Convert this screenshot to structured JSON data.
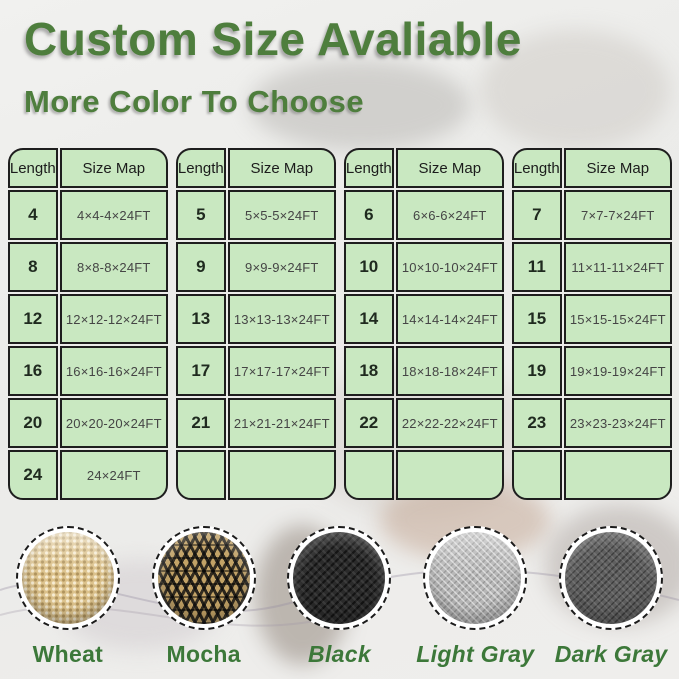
{
  "header": {
    "title": "Custom Size Avaliable",
    "subtitle": "More Color To Choose"
  },
  "tables": [
    {
      "columns": [
        "Length",
        "Size Map"
      ],
      "rows": [
        [
          "4",
          "4×4-4×24FT"
        ],
        [
          "8",
          "8×8-8×24FT"
        ],
        [
          "12",
          "12×12-12×24FT"
        ],
        [
          "16",
          "16×16-16×24FT"
        ],
        [
          "20",
          "20×20-20×24FT"
        ],
        [
          "24",
          "24×24FT"
        ]
      ]
    },
    {
      "columns": [
        "Length",
        "Size Map"
      ],
      "rows": [
        [
          "5",
          "5×5-5×24FT"
        ],
        [
          "9",
          "9×9-9×24FT"
        ],
        [
          "13",
          "13×13-13×24FT"
        ],
        [
          "17",
          "17×17-17×24FT"
        ],
        [
          "21",
          "21×21-21×24FT"
        ],
        [
          "",
          ""
        ]
      ]
    },
    {
      "columns": [
        "Length",
        "Size Map"
      ],
      "rows": [
        [
          "6",
          "6×6-6×24FT"
        ],
        [
          "10",
          "10×10-10×24FT"
        ],
        [
          "14",
          "14×14-14×24FT"
        ],
        [
          "18",
          "18×18-18×24FT"
        ],
        [
          "22",
          "22×22-22×24FT"
        ],
        [
          "",
          ""
        ]
      ]
    },
    {
      "columns": [
        "Length",
        "Size Map"
      ],
      "rows": [
        [
          "7",
          "7×7-7×24FT"
        ],
        [
          "11",
          "11×11-11×24FT"
        ],
        [
          "15",
          "15×15-15×24FT"
        ],
        [
          "19",
          "19×19-19×24FT"
        ],
        [
          "23",
          "23×23-23×24FT"
        ],
        [
          "",
          ""
        ]
      ]
    }
  ],
  "swatches": [
    {
      "name": "Wheat",
      "key": "wheat",
      "base_color": "#dcc28c",
      "italic": false
    },
    {
      "name": "Mocha",
      "key": "mocha",
      "base_color": "#c2a266",
      "italic": false
    },
    {
      "name": "Black",
      "key": "black",
      "base_color": "#2b2b2b",
      "italic": true
    },
    {
      "name": "Light Gray",
      "key": "lightgray",
      "base_color": "#b7b7b7",
      "italic": true
    },
    {
      "name": "Dark Gray",
      "key": "darkgray",
      "base_color": "#5f5f5f",
      "italic": true
    }
  ],
  "colors": {
    "title_green": "#4e7e3d",
    "label_green": "#3c7839",
    "cell_green": "#c9e8c1",
    "cell_border": "#1e1e1e"
  }
}
